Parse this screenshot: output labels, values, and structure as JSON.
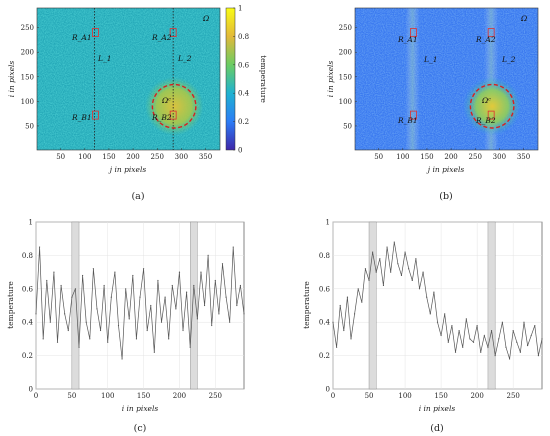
{
  "chart_data": [
    {
      "type": "heatmap",
      "caption": "(a)",
      "xlabel": "j in pixels",
      "ylabel": "i in pixels",
      "xticks": [
        50,
        100,
        150,
        200,
        250,
        300,
        350
      ],
      "yticks": [
        50,
        100,
        150,
        200,
        250
      ],
      "xlim": [
        1,
        380
      ],
      "ylim": [
        1,
        290
      ],
      "annotations": {
        "omega": "Ω",
        "omega_c": "Ωᶜ",
        "ra1": "R_A1",
        "ra2": "R_A2",
        "rb1": "R_B1",
        "rb2": "R_B2",
        "l1": "L_1",
        "l2": "L_2"
      },
      "circle": {
        "center_j": 285,
        "center_i": 90,
        "radius": 45
      },
      "lines_j": [
        120,
        283
      ],
      "roi_centers": [
        [
          122,
          240
        ],
        [
          283,
          240
        ],
        [
          122,
          72
        ],
        [
          283,
          72
        ]
      ],
      "colorbar": {
        "label": "temperature",
        "ticks": [
          "0",
          "0.2",
          "0.4",
          "0.6",
          "0.8",
          "1"
        ],
        "range": [
          0,
          1
        ]
      }
    },
    {
      "type": "heatmap",
      "caption": "(b)",
      "xlabel": "j in pixels",
      "ylabel": "i in pixels",
      "xticks": [
        50,
        100,
        150,
        200,
        250,
        300,
        350
      ],
      "yticks": [
        50,
        100,
        150,
        200,
        250
      ],
      "xlim": [
        1,
        380
      ],
      "ylim": [
        1,
        290
      ],
      "annotations": {
        "omega": "Ω",
        "omega_c": "Ωᶜ",
        "ra1": "R_A1",
        "ra2": "R_A2",
        "rb1": "R_B1",
        "rb2": "R_B2",
        "l1": "L_1",
        "l2": "L_2"
      },
      "circle": {
        "center_j": 285,
        "center_i": 90,
        "radius": 45
      }
    },
    {
      "type": "line",
      "caption": "(c)",
      "xlabel": "i in pixels",
      "ylabel": "temperature",
      "xticks": [
        0,
        50,
        100,
        150,
        200,
        250
      ],
      "yticks": [
        "0",
        "0.2",
        "0.4",
        "0.6",
        "0.8",
        "1"
      ],
      "xlim": [
        0,
        290
      ],
      "ylim": [
        0,
        1
      ],
      "shaded_x": [
        [
          50,
          60
        ],
        [
          215,
          225
        ]
      ],
      "x": [
        0,
        5,
        10,
        15,
        20,
        25,
        30,
        35,
        40,
        45,
        50,
        55,
        60,
        65,
        70,
        75,
        80,
        85,
        90,
        95,
        100,
        105,
        110,
        115,
        120,
        125,
        130,
        135,
        140,
        145,
        150,
        155,
        160,
        165,
        170,
        175,
        180,
        185,
        190,
        195,
        200,
        205,
        210,
        215,
        220,
        225,
        230,
        235,
        240,
        245,
        250,
        255,
        260,
        265,
        270,
        275,
        280,
        285,
        290
      ],
      "y": [
        0.45,
        0.85,
        0.3,
        0.65,
        0.4,
        0.7,
        0.28,
        0.62,
        0.45,
        0.35,
        0.55,
        0.6,
        0.25,
        0.68,
        0.4,
        0.3,
        0.72,
        0.48,
        0.35,
        0.62,
        0.28,
        0.55,
        0.7,
        0.38,
        0.18,
        0.6,
        0.42,
        0.68,
        0.3,
        0.55,
        0.72,
        0.35,
        0.5,
        0.22,
        0.65,
        0.4,
        0.55,
        0.3,
        0.62,
        0.48,
        0.7,
        0.35,
        0.58,
        0.25,
        0.62,
        0.42,
        0.7,
        0.5,
        0.8,
        0.38,
        0.65,
        0.45,
        0.75,
        0.55,
        0.4,
        0.85,
        0.5,
        0.62,
        0.45
      ]
    },
    {
      "type": "line",
      "caption": "(d)",
      "xlabel": "i in pixels",
      "ylabel": "temperature",
      "xticks": [
        0,
        50,
        100,
        150,
        200,
        250
      ],
      "yticks": [
        "0",
        "0.2",
        "0.4",
        "0.6",
        "0.8",
        "1"
      ],
      "xlim": [
        0,
        290
      ],
      "ylim": [
        0,
        1
      ],
      "shaded_x": [
        [
          50,
          60
        ],
        [
          215,
          225
        ]
      ],
      "x": [
        0,
        5,
        10,
        15,
        20,
        25,
        30,
        35,
        40,
        45,
        50,
        55,
        60,
        65,
        70,
        75,
        80,
        85,
        90,
        95,
        100,
        105,
        110,
        115,
        120,
        125,
        130,
        135,
        140,
        145,
        150,
        155,
        160,
        165,
        170,
        175,
        180,
        185,
        190,
        195,
        200,
        205,
        210,
        215,
        220,
        225,
        230,
        235,
        240,
        245,
        250,
        255,
        260,
        265,
        270,
        275,
        280,
        285,
        290
      ],
      "y": [
        0.4,
        0.25,
        0.5,
        0.35,
        0.55,
        0.3,
        0.45,
        0.6,
        0.52,
        0.72,
        0.65,
        0.82,
        0.7,
        0.78,
        0.62,
        0.85,
        0.7,
        0.88,
        0.75,
        0.68,
        0.82,
        0.72,
        0.65,
        0.78,
        0.6,
        0.7,
        0.55,
        0.45,
        0.58,
        0.4,
        0.32,
        0.45,
        0.28,
        0.38,
        0.22,
        0.35,
        0.25,
        0.42,
        0.3,
        0.28,
        0.38,
        0.22,
        0.32,
        0.25,
        0.35,
        0.2,
        0.3,
        0.4,
        0.25,
        0.18,
        0.35,
        0.28,
        0.22,
        0.4,
        0.26,
        0.32,
        0.38,
        0.2,
        0.3
      ]
    }
  ]
}
